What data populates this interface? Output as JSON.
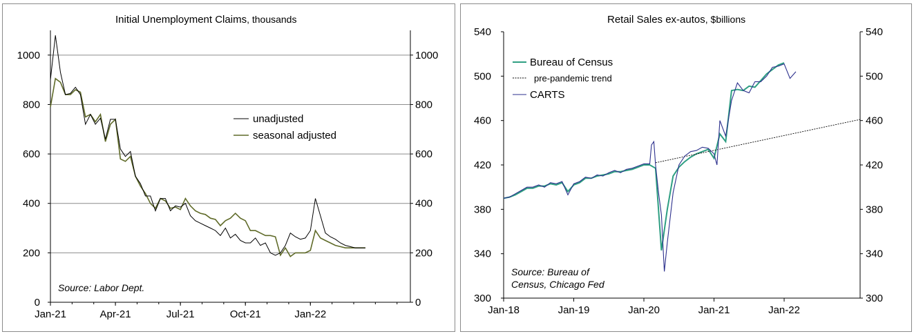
{
  "chart_data": [
    {
      "type": "line",
      "title": "Initial Unemployment Claims",
      "title_unit": ", thousands",
      "x_tick_labels": [
        "Jan-21",
        "Apr-21",
        "Jul-21",
        "Oct-21",
        "Jan-22"
      ],
      "y_ticks": [
        0,
        200,
        400,
        600,
        800,
        1000
      ],
      "ylim": [
        0,
        1100
      ],
      "xlim_weeks": [
        0,
        72
      ],
      "grid": true,
      "legend_position": "middle-right",
      "annotation": "Source: Labor Dept.",
      "series": [
        {
          "name": "unadjusted",
          "color": "#000000",
          "x_week": [
            0,
            1,
            2,
            3,
            4,
            5,
            6,
            7,
            8,
            9,
            10,
            11,
            12,
            13,
            14,
            15,
            16,
            17,
            18,
            19,
            20,
            21,
            22,
            23,
            24,
            25,
            26,
            27,
            28,
            29,
            30,
            31,
            32,
            33,
            34,
            35,
            36,
            37,
            38,
            39,
            40,
            41,
            42,
            43,
            44,
            45,
            46,
            47,
            48,
            49,
            50,
            51,
            52,
            53,
            54,
            55,
            56,
            57,
            58,
            59,
            60,
            61,
            62,
            63
          ],
          "values": [
            900,
            1080,
            930,
            840,
            845,
            870,
            840,
            720,
            760,
            720,
            745,
            660,
            740,
            740,
            620,
            590,
            610,
            510,
            480,
            430,
            430,
            370,
            420,
            420,
            370,
            390,
            385,
            400,
            350,
            330,
            320,
            310,
            300,
            290,
            270,
            300,
            260,
            275,
            250,
            240,
            240,
            260,
            230,
            240,
            200,
            190,
            200,
            230,
            280,
            265,
            255,
            260,
            290,
            420,
            350,
            280,
            265,
            255,
            240,
            230,
            225,
            220,
            220,
            220
          ]
        },
        {
          "name": "seasonal adjusted",
          "color": "#5f6a28",
          "x_week": [
            0,
            1,
            2,
            3,
            4,
            5,
            6,
            7,
            8,
            9,
            10,
            11,
            12,
            13,
            14,
            15,
            16,
            17,
            18,
            19,
            20,
            21,
            22,
            23,
            24,
            25,
            26,
            27,
            28,
            29,
            30,
            31,
            32,
            33,
            34,
            35,
            36,
            37,
            38,
            39,
            40,
            41,
            42,
            43,
            44,
            45,
            46,
            47,
            48,
            49,
            50,
            51,
            52,
            53,
            54,
            55,
            56,
            57,
            58,
            59,
            60,
            61,
            62,
            63
          ],
          "values": [
            790,
            905,
            890,
            840,
            840,
            860,
            850,
            750,
            760,
            730,
            760,
            650,
            720,
            740,
            580,
            570,
            590,
            510,
            470,
            440,
            400,
            380,
            420,
            410,
            380,
            385,
            375,
            420,
            390,
            370,
            360,
            355,
            340,
            335,
            310,
            330,
            340,
            360,
            340,
            330,
            290,
            290,
            280,
            270,
            270,
            265,
            190,
            220,
            185,
            200,
            200,
            200,
            210,
            290,
            260,
            250,
            240,
            230,
            225,
            220,
            220,
            220,
            220,
            220
          ]
        }
      ]
    },
    {
      "type": "line",
      "title": "Retail Sales ex-autos",
      "title_unit": ", $billions",
      "x_tick_labels": [
        "Jan-18",
        "Jan-19",
        "Jan-20",
        "Jan-21",
        "Jan-22"
      ],
      "y_ticks": [
        300,
        340,
        380,
        420,
        460,
        500,
        540
      ],
      "ylim": [
        300,
        540
      ],
      "xlim_months": [
        0,
        61
      ],
      "grid": false,
      "legend_position": "top-left",
      "annotation": "Source: Bureau of Census, Chicago Fed",
      "annotation_lines": [
        "Source: Bureau of",
        "Census, Chicago Fed"
      ],
      "series": [
        {
          "name": "Bureau of Census",
          "color": "#2e9e82",
          "x_month": [
            0,
            1,
            2,
            3,
            4,
            5,
            6,
            7,
            8,
            9,
            10,
            11,
            12,
            13,
            14,
            15,
            16,
            17,
            18,
            19,
            20,
            21,
            22,
            23,
            24,
            25,
            26,
            27,
            28,
            29,
            30,
            31,
            32,
            33,
            34,
            35,
            36,
            37,
            38,
            39,
            40,
            41,
            42,
            43,
            44,
            45,
            46,
            47,
            48
          ],
          "values": [
            390,
            391,
            393,
            396,
            399,
            399,
            401,
            401,
            403,
            402,
            404,
            396,
            402,
            404,
            408,
            408,
            410,
            411,
            412,
            414,
            414,
            415,
            416,
            418,
            420,
            420,
            417,
            343,
            380,
            410,
            418,
            423,
            427,
            430,
            432,
            434,
            426,
            448,
            441,
            487,
            488,
            487,
            491,
            490,
            496,
            502,
            506,
            510,
            512
          ]
        },
        {
          "name": "pre-pandemic trend",
          "color": "#000000",
          "x_month": [
            26,
            61
          ],
          "values": [
            422,
            461
          ]
        },
        {
          "name": "CARTS",
          "color": "#2b2f8c",
          "x_month": [
            0,
            1,
            2,
            3,
            4,
            5,
            6,
            7,
            8,
            9,
            10,
            11,
            12,
            13,
            14,
            15,
            16,
            17,
            18,
            19,
            20,
            21,
            22,
            23,
            24,
            25,
            25.3,
            25.7,
            26,
            26.5,
            27,
            27.5,
            28,
            29,
            30,
            31,
            32,
            33,
            34,
            35,
            36,
            36.5,
            37,
            38,
            39,
            40,
            41,
            42,
            43,
            44,
            45,
            46,
            47,
            48,
            49,
            50
          ],
          "values": [
            390,
            391,
            394,
            397,
            400,
            400,
            402,
            400,
            404,
            403,
            405,
            393,
            403,
            405,
            409,
            408,
            411,
            410,
            413,
            415,
            413,
            416,
            417,
            419,
            421,
            421,
            438,
            441,
            420,
            395,
            375,
            324,
            350,
            395,
            420,
            428,
            432,
            433,
            436,
            435,
            430,
            420,
            460,
            446,
            478,
            494,
            487,
            485,
            495,
            495,
            500,
            508,
            509,
            511,
            498,
            504
          ]
        }
      ]
    }
  ]
}
